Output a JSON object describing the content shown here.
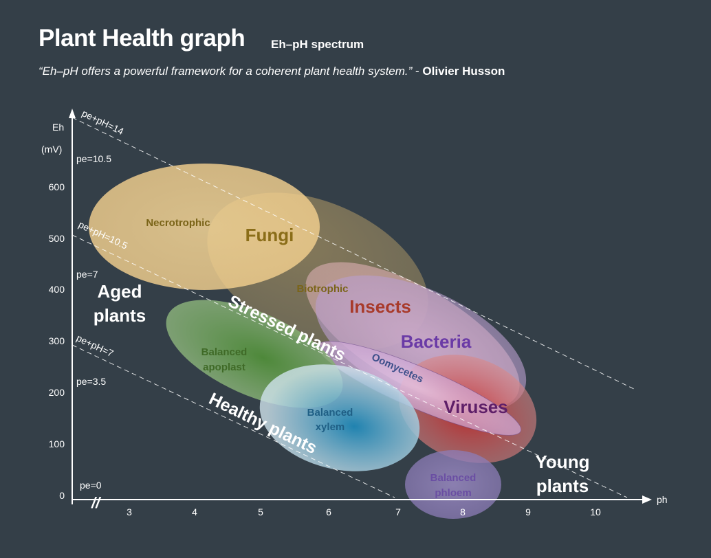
{
  "header": {
    "title": "Plant Health graph",
    "subtitle": "Eh–pH spectrum",
    "quote": "“Eh–pH offers a powerful framework for a coherent plant health system.”",
    "quote_sep": " - ",
    "quote_author": "Olivier Husson"
  },
  "axes": {
    "y_label_top": "Eh",
    "y_label_unit": "(mV)",
    "x_label": "ph",
    "y_ticks": [
      "600",
      "500",
      "400",
      "300",
      "200",
      "100",
      "0"
    ],
    "x_ticks": [
      "3",
      "4",
      "5",
      "6",
      "7",
      "8",
      "9",
      "10"
    ],
    "break_mark": "//"
  },
  "pe_labels": {
    "pe105": "pe=10.5",
    "pe7": "pe=7",
    "pe35": "pe=3.5",
    "pe0": "pe=0"
  },
  "isolines": {
    "pe_ph_14": "pe+pH=14",
    "pe_ph_105": "pe+pH=10.5",
    "pe_ph_7": "pe+pH=7"
  },
  "zones": {
    "aged_1": "Aged",
    "aged_2": "plants",
    "young_1": "Young",
    "young_2": "plants",
    "stressed": "Stressed plants",
    "healthy": "Healthy plants"
  },
  "regions": {
    "necrotrophic": "Necrotrophic",
    "fungi": "Fungi",
    "biotrophic": "Biotrophic",
    "insects": "Insects",
    "bacteria": "Bacteria",
    "oomycetes": "Oomycetes",
    "viruses": "Viruses",
    "apoplast_1": "Balanced",
    "apoplast_2": "apoplast",
    "xylem_1": "Balanced",
    "xylem_2": "xylem",
    "phloem_1": "Balanced",
    "phloem_2": "phloem"
  },
  "colors": {
    "background": "#343f48",
    "fungi": "#f2cf8e",
    "fungi_text": "#7a6418",
    "insects": "#c84a3a",
    "bacteria": "#b799cf",
    "bacteria_text": "#6a3aa6",
    "viruses_text": "#5e1f68",
    "apoplast": "#5d9748",
    "apoplast_text": "#3f6a27",
    "xylem": "#2c8ab8",
    "phloem_text": "#6a4ea3"
  }
}
